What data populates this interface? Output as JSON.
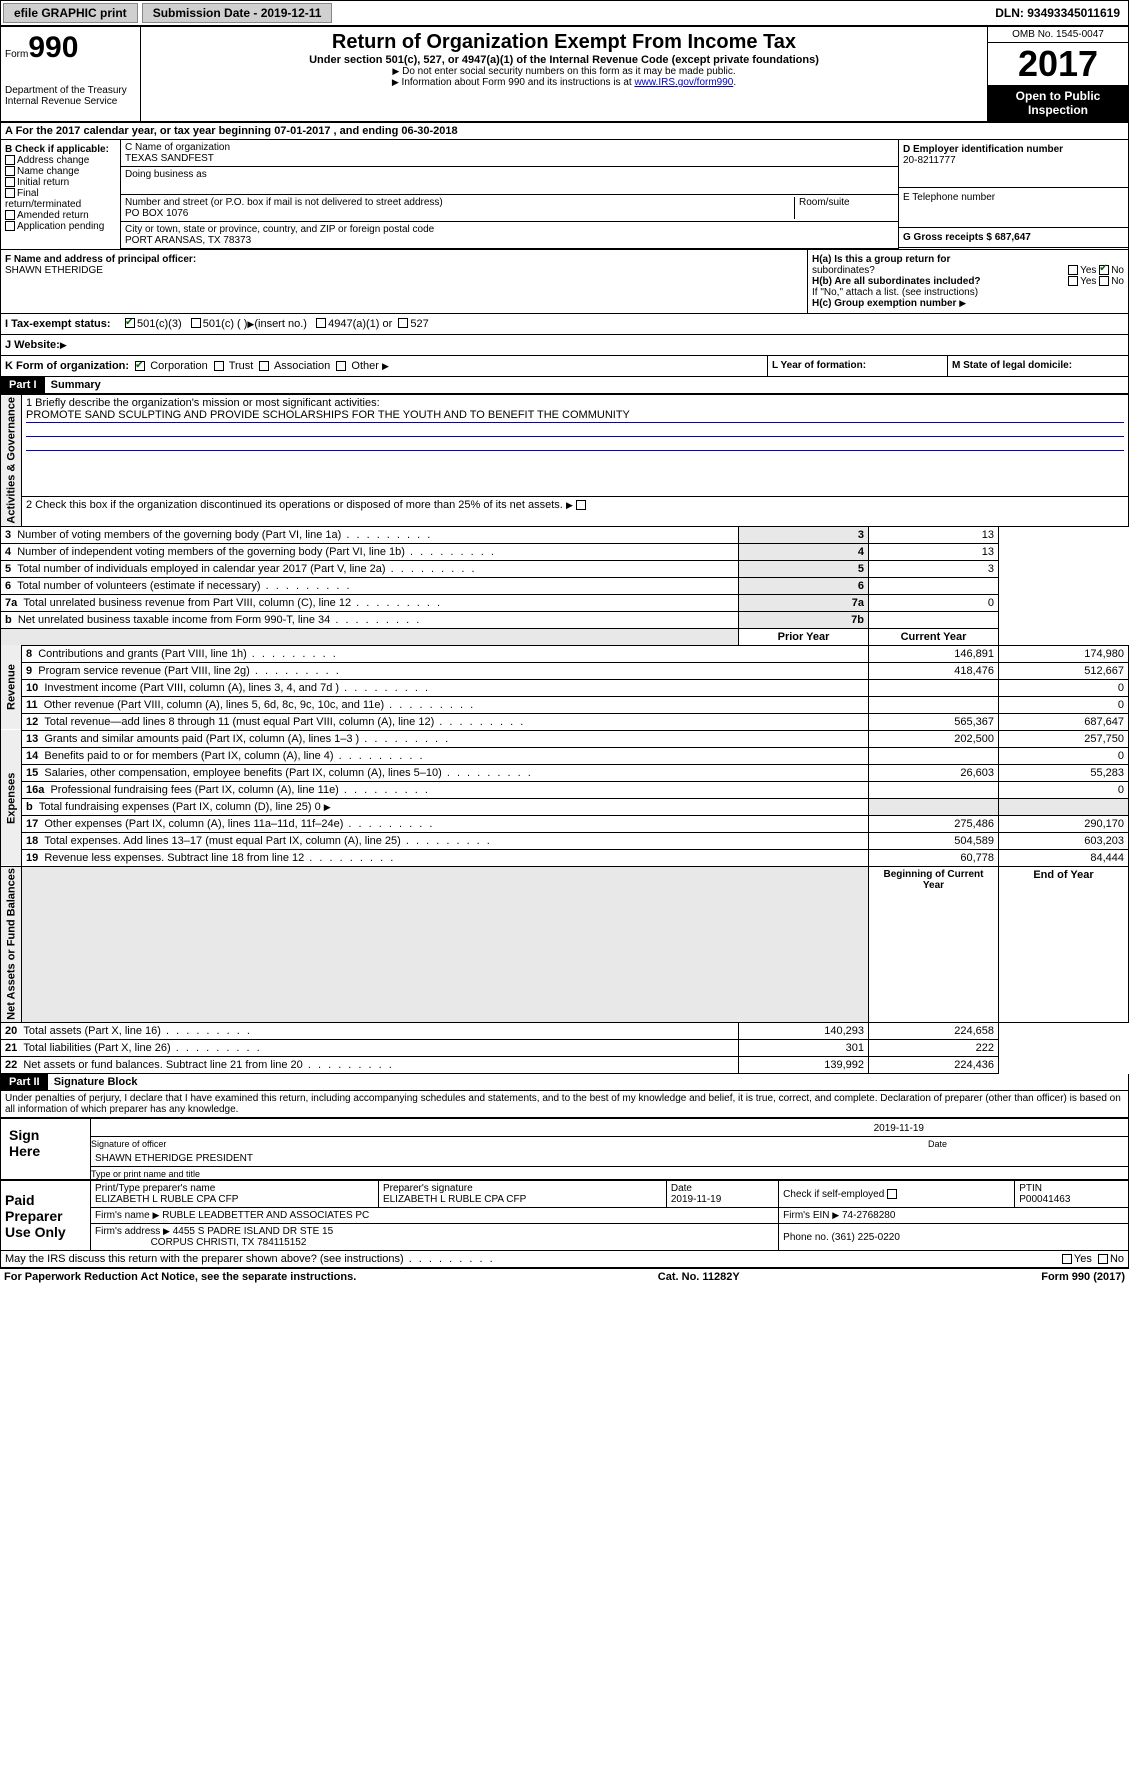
{
  "topbar": {
    "efile": "efile GRAPHIC print",
    "submission": "Submission Date - 2019-12-11",
    "dln": "DLN: 93493345011619"
  },
  "header": {
    "form_word": "Form",
    "form_num": "990",
    "dept": "Department of the Treasury\nInternal Revenue Service",
    "title": "Return of Organization Exempt From Income Tax",
    "subtitle": "Under section 501(c), 527, or 4947(a)(1) of the Internal Revenue Code (except private foundations)",
    "note1": "Do not enter social security numbers on this form as it may be made public.",
    "note2_pre": "Information about Form 990 and its instructions is at ",
    "note2_link": "www.IRS.gov/form990",
    "omb": "OMB No. 1545-0047",
    "year": "2017",
    "open": "Open to Public Inspection"
  },
  "rowA": "A  For the 2017 calendar year, or tax year beginning 07-01-2017   , and ending 06-30-2018",
  "boxB": {
    "label": "B Check if applicable:",
    "opts": [
      "Address change",
      "Name change",
      "Initial return",
      "Final return/terminated",
      "Amended return",
      "Application pending"
    ]
  },
  "boxC": {
    "name_lbl": "C Name of organization",
    "name": "TEXAS SANDFEST",
    "dba_lbl": "Doing business as",
    "addr_lbl": "Number and street (or P.O. box if mail is not delivered to street address)",
    "room_lbl": "Room/suite",
    "addr": "PO BOX 1076",
    "city_lbl": "City or town, state or province, country, and ZIP or foreign postal code",
    "city": "PORT ARANSAS, TX  78373"
  },
  "boxD": {
    "lbl": "D Employer identification number",
    "val": "20-8211777"
  },
  "boxE": {
    "lbl": "E Telephone number",
    "val": ""
  },
  "boxG": {
    "lbl": "G Gross receipts $ 687,647"
  },
  "boxF": {
    "lbl": "F  Name and address of principal officer:",
    "val": "SHAWN ETHERIDGE"
  },
  "boxH": {
    "a": "H(a)  Is this a group return for",
    "a2": "subordinates?",
    "b": "H(b)  Are all subordinates included?",
    "b2": "If \"No,\" attach a list. (see instructions)",
    "c": "H(c)  Group exemption number",
    "yes": "Yes",
    "no": "No"
  },
  "taxStatus": {
    "lbl": "I   Tax-exempt status:",
    "o1": "501(c)(3)",
    "o2": "501(c) (  )",
    "o2b": "(insert no.)",
    "o3": "4947(a)(1) or",
    "o4": "527"
  },
  "rowJ": "J   Website:",
  "rowK": {
    "lbl": "K Form of organization:",
    "o1": "Corporation",
    "o2": "Trust",
    "o3": "Association",
    "o4": "Other"
  },
  "rowL": "L Year of formation:",
  "rowM": "M State of legal domicile:",
  "part1": {
    "hdr": "Part I",
    "title": "Summary"
  },
  "mission": {
    "lbl": "1   Briefly describe the organization's mission or most significant activities:",
    "txt": "PROMOTE SAND SCULPTING AND PROVIDE SCHOLARSHIPS FOR THE YOUTH AND TO BENEFIT THE COMMUNITY"
  },
  "line2": "2   Check this box        if the organization discontinued its operations or disposed of more than 25% of its net assets.",
  "govLines": [
    {
      "n": "3",
      "t": "Number of voting members of the governing body (Part VI, line 1a)",
      "k": "3",
      "v": "13"
    },
    {
      "n": "4",
      "t": "Number of independent voting members of the governing body (Part VI, line 1b)",
      "k": "4",
      "v": "13"
    },
    {
      "n": "5",
      "t": "Total number of individuals employed in calendar year 2017 (Part V, line 2a)",
      "k": "5",
      "v": "3"
    },
    {
      "n": "6",
      "t": "Total number of volunteers (estimate if necessary)",
      "k": "6",
      "v": ""
    },
    {
      "n": "7a",
      "t": "Total unrelated business revenue from Part VIII, column (C), line 12",
      "k": "7a",
      "v": "0"
    },
    {
      "n": "b",
      "t": "Net unrelated business taxable income from Form 990-T, line 34",
      "k": "7b",
      "v": ""
    }
  ],
  "yrHdr": {
    "prior": "Prior Year",
    "curr": "Current Year"
  },
  "revLines": [
    {
      "n": "8",
      "t": "Contributions and grants (Part VIII, line 1h)",
      "p": "146,891",
      "c": "174,980"
    },
    {
      "n": "9",
      "t": "Program service revenue (Part VIII, line 2g)",
      "p": "418,476",
      "c": "512,667"
    },
    {
      "n": "10",
      "t": "Investment income (Part VIII, column (A), lines 3, 4, and 7d )",
      "p": "",
      "c": "0"
    },
    {
      "n": "11",
      "t": "Other revenue (Part VIII, column (A), lines 5, 6d, 8c, 9c, 10c, and 11e)",
      "p": "",
      "c": "0"
    },
    {
      "n": "12",
      "t": "Total revenue—add lines 8 through 11 (must equal Part VIII, column (A), line 12)",
      "p": "565,367",
      "c": "687,647"
    }
  ],
  "expLines": [
    {
      "n": "13",
      "t": "Grants and similar amounts paid (Part IX, column (A), lines 1–3 )",
      "p": "202,500",
      "c": "257,750"
    },
    {
      "n": "14",
      "t": "Benefits paid to or for members (Part IX, column (A), line 4)",
      "p": "",
      "c": "0"
    },
    {
      "n": "15",
      "t": "Salaries, other compensation, employee benefits (Part IX, column (A), lines 5–10)",
      "p": "26,603",
      "c": "55,283"
    },
    {
      "n": "16a",
      "t": "Professional fundraising fees (Part IX, column (A), line 11e)",
      "p": "",
      "c": "0"
    },
    {
      "n": "b",
      "t": "Total fundraising expenses (Part IX, column (D), line 25)  0",
      "p": "—",
      "c": "—"
    },
    {
      "n": "17",
      "t": "Other expenses (Part IX, column (A), lines 11a–11d, 11f–24e)",
      "p": "275,486",
      "c": "290,170"
    },
    {
      "n": "18",
      "t": "Total expenses. Add lines 13–17 (must equal Part IX, column (A), line 25)",
      "p": "504,589",
      "c": "603,203"
    },
    {
      "n": "19",
      "t": "Revenue less expenses. Subtract line 18 from line 12",
      "p": "60,778",
      "c": "84,444"
    }
  ],
  "naHdr": {
    "beg": "Beginning of Current Year",
    "end": "End of Year"
  },
  "naLines": [
    {
      "n": "20",
      "t": "Total assets (Part X, line 16)",
      "p": "140,293",
      "c": "224,658"
    },
    {
      "n": "21",
      "t": "Total liabilities (Part X, line 26)",
      "p": "301",
      "c": "222"
    },
    {
      "n": "22",
      "t": "Net assets or fund balances. Subtract line 21 from line 20",
      "p": "139,992",
      "c": "224,436"
    }
  ],
  "sideLabels": {
    "gov": "Activities & Governance",
    "rev": "Revenue",
    "exp": "Expenses",
    "na": "Net Assets or\nFund Balances"
  },
  "part2": {
    "hdr": "Part II",
    "title": "Signature Block"
  },
  "perjury": "Under penalties of perjury, I declare that I have examined this return, including accompanying schedules and statements, and to the best of my knowledge and belief, it is true, correct, and complete. Declaration of preparer (other than officer) is based on all information of which preparer has any knowledge.",
  "sign": {
    "here": "Sign Here",
    "sigoff": "Signature of officer",
    "date": "Date",
    "dateval": "2019-11-19",
    "name": "SHAWN ETHERIDGE  PRESIDENT",
    "typelbl": "Type or print name and title"
  },
  "prep": {
    "lbl": "Paid Preparer Use Only",
    "pn_lbl": "Print/Type preparer's name",
    "pn": "ELIZABETH L RUBLE CPA CFP",
    "ps_lbl": "Preparer's signature",
    "ps": "ELIZABETH L RUBLE CPA CFP",
    "d_lbl": "Date",
    "d": "2019-11-19",
    "se_lbl": "Check        if self-employed",
    "ptin_lbl": "PTIN",
    "ptin": "P00041463",
    "fn_lbl": "Firm's name",
    "fn": "RUBLE LEADBETTER AND ASSOCIATES PC",
    "ein_lbl": "Firm's EIN",
    "ein": "74-2768280",
    "fa_lbl": "Firm's address",
    "fa": "4455 S PADRE ISLAND DR STE 15",
    "fa2": "CORPUS CHRISTI, TX  784115152",
    "ph_lbl": "Phone no.",
    "ph": "(361) 225-0220"
  },
  "discuss": "May the IRS discuss this return with the preparer shown above? (see instructions)",
  "footer": {
    "l": "For Paperwork Reduction Act Notice, see the separate instructions.",
    "c": "Cat. No. 11282Y",
    "r": "Form 990 (2017)"
  }
}
